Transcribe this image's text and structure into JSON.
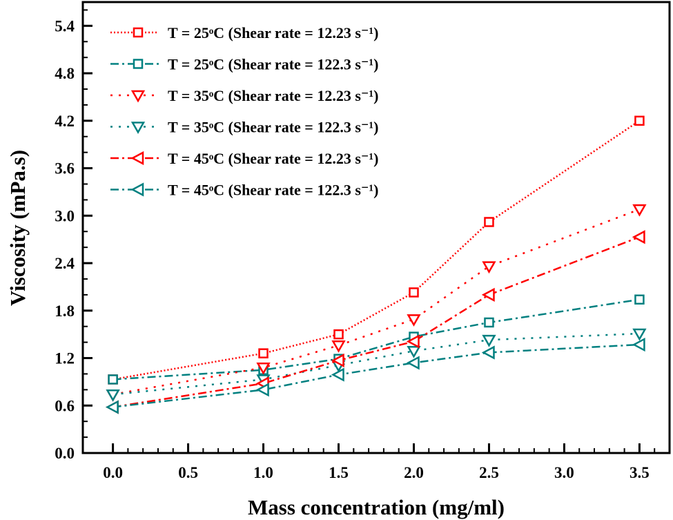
{
  "chart_data": {
    "type": "line",
    "xlabel": "Mass concentration (mg/ml)",
    "ylabel": "Viscosity (mPa.s)",
    "xlim": [
      -0.2,
      3.7
    ],
    "ylim": [
      0,
      5.7
    ],
    "xticks": [
      "0.0",
      "0.5",
      "1.0",
      "1.5",
      "2.0",
      "2.5",
      "3.0",
      "3.5"
    ],
    "yticks": [
      "0.0",
      "0.6",
      "1.2",
      "1.8",
      "2.4",
      "3.0",
      "3.6",
      "4.2",
      "4.8",
      "5.4"
    ],
    "grid": false,
    "legend_position": "top-left",
    "x": [
      0.0,
      1.0,
      1.5,
      2.0,
      2.5,
      3.5
    ],
    "series": [
      {
        "name": "T = 25ᵒC (Shear rate = 12.23 s⁻¹)",
        "color": "#ff0000",
        "marker": "square",
        "dash": "dot",
        "values": [
          0.93,
          1.26,
          1.5,
          2.03,
          2.92,
          4.2
        ]
      },
      {
        "name": "T = 25ᵒC (Shear rate = 122.3 s⁻¹)",
        "color": "#008080",
        "marker": "square",
        "dash": "dash-dot",
        "values": [
          0.93,
          1.05,
          1.19,
          1.47,
          1.65,
          1.94
        ]
      },
      {
        "name": "T = 35ᵒC (Shear rate = 12.23 s⁻¹)",
        "color": "#ff0000",
        "marker": "triangle-down",
        "dash": "short-dot",
        "values": [
          0.74,
          1.08,
          1.36,
          1.69,
          2.36,
          3.08
        ]
      },
      {
        "name": "T = 35ᵒC (Shear rate = 122.3 s⁻¹)",
        "color": "#008080",
        "marker": "triangle-down",
        "dash": "short-dot",
        "values": [
          0.74,
          0.93,
          1.11,
          1.29,
          1.43,
          1.51
        ]
      },
      {
        "name": "T = 45ᵒC (Shear rate = 12.23 s⁻¹)",
        "color": "#ff0000",
        "marker": "triangle-left",
        "dash": "dash-dot",
        "values": [
          0.58,
          0.88,
          1.17,
          1.41,
          2.0,
          2.73
        ]
      },
      {
        "name": "T = 45ᵒC (Shear rate = 122.3 s⁻¹)",
        "color": "#008080",
        "marker": "triangle-left",
        "dash": "dash-dot",
        "values": [
          0.58,
          0.8,
          0.99,
          1.14,
          1.27,
          1.37
        ]
      }
    ]
  }
}
